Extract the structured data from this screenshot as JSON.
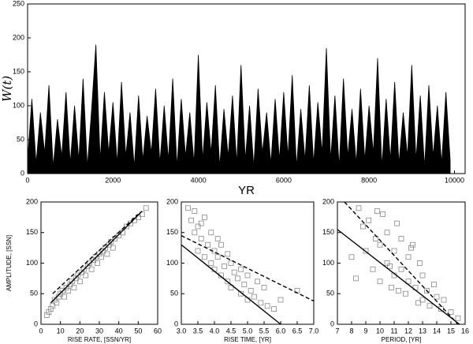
{
  "chart_data": [
    {
      "type": "area",
      "xlabel": "YR",
      "ylabel": "W(t)",
      "xlim": [
        0,
        10250
      ],
      "ylim": [
        0,
        250
      ],
      "xticks": [
        0,
        2000,
        4000,
        6000,
        8000,
        10000
      ],
      "yticks": [
        0,
        50,
        100,
        150,
        200,
        250
      ],
      "series": [
        {
          "color": "#000000",
          "x": [
            0,
            100,
            200,
            300,
            400,
            500,
            600,
            700,
            800,
            900,
            1000,
            1100,
            1200,
            1300,
            1400,
            1500,
            1600,
            1700,
            1800,
            1900,
            2000,
            2100,
            2200,
            2300,
            2400,
            2500,
            2600,
            2700,
            2800,
            2900,
            3000,
            3100,
            3200,
            3300,
            3400,
            3500,
            3600,
            3700,
            3800,
            3900,
            4000,
            4100,
            4200,
            4300,
            4400,
            4500,
            4600,
            4700,
            4800,
            4900,
            5000,
            5100,
            5200,
            5300,
            5400,
            5500,
            5600,
            5700,
            5800,
            5900,
            6000,
            6100,
            6200,
            6300,
            6400,
            6500,
            6600,
            6700,
            6800,
            6900,
            7000,
            7100,
            7200,
            7300,
            7400,
            7500,
            7600,
            7700,
            7800,
            7900,
            8000,
            8100,
            8200,
            8300,
            8400,
            8500,
            8600,
            8700,
            8800,
            8900,
            9000,
            9100,
            9200,
            9300,
            9400,
            9500,
            9600,
            9700,
            9800,
            9900
          ],
          "values": [
            20,
            110,
            15,
            90,
            30,
            130,
            10,
            80,
            25,
            120,
            15,
            100,
            20,
            140,
            10,
            95,
            190,
            20,
            120,
            30,
            105,
            15,
            135,
            25,
            90,
            10,
            115,
            20,
            85,
            30,
            125,
            15,
            100,
            20,
            140,
            10,
            110,
            25,
            90,
            15,
            175,
            20,
            105,
            30,
            130,
            10,
            95,
            25,
            115,
            15,
            160,
            20,
            100,
            10,
            125,
            30,
            90,
            15,
            110,
            20,
            120,
            25,
            145,
            10,
            95,
            20,
            130,
            15,
            105,
            30,
            185,
            20,
            115,
            10,
            140,
            25,
            95,
            15,
            125,
            20,
            100,
            30,
            170,
            10,
            110,
            20,
            135,
            15,
            90,
            25,
            160,
            20,
            115,
            10,
            130,
            25,
            100,
            15,
            120,
            20
          ]
        }
      ]
    },
    {
      "type": "scatter",
      "xlabel": "RISE RATE, [SSN/YR]",
      "ylabel": "AMPLITUDE, [SSN]",
      "xlim": [
        0,
        60
      ],
      "ylim": [
        0,
        200
      ],
      "xticks": [
        0,
        10,
        20,
        30,
        40,
        50,
        60
      ],
      "yticks": [
        0,
        50,
        100,
        150,
        200
      ],
      "series": [
        {
          "mode": "markers",
          "color": "#888888",
          "x": [
            3,
            4,
            5,
            6,
            7,
            8,
            9,
            10,
            11,
            12,
            13,
            14,
            15,
            16,
            17,
            18,
            19,
            20,
            21,
            22,
            23,
            24,
            25,
            26,
            27,
            28,
            29,
            30,
            31,
            32,
            33,
            34,
            35,
            36,
            37,
            38,
            40,
            42,
            44,
            46,
            48,
            50,
            52,
            54
          ],
          "values": [
            15,
            20,
            25,
            30,
            40,
            35,
            45,
            50,
            55,
            45,
            60,
            55,
            65,
            70,
            60,
            75,
            80,
            70,
            85,
            90,
            80,
            95,
            100,
            90,
            105,
            110,
            100,
            115,
            110,
            120,
            125,
            115,
            130,
            135,
            125,
            140,
            145,
            150,
            160,
            165,
            170,
            175,
            180,
            190
          ]
        },
        {
          "mode": "solid",
          "color": "#000000",
          "x": [
            5,
            52
          ],
          "values": [
            35,
            185
          ]
        },
        {
          "mode": "dashed",
          "color": "#000000",
          "x": [
            6,
            50
          ],
          "values": [
            50,
            180
          ]
        }
      ]
    },
    {
      "type": "scatter",
      "xlabel": "RISE TIME, [YR]",
      "xlim": [
        3,
        7
      ],
      "ylim": [
        0,
        200
      ],
      "xticks": [
        {
          "value": 3,
          "label": "3.0"
        },
        3.5,
        {
          "value": 4,
          "label": "4.0"
        },
        4.5,
        {
          "value": 5,
          "label": "5.0"
        },
        5.5,
        {
          "value": 6,
          "label": "6.0"
        },
        6.5,
        {
          "value": 7,
          "label": "7.0"
        }
      ],
      "yticks": [
        0,
        50,
        100,
        150,
        200
      ],
      "series": [
        {
          "mode": "markers",
          "color": "#888888",
          "x": [
            3.2,
            3.3,
            3.4,
            3.5,
            3.5,
            3.6,
            3.7,
            3.7,
            3.8,
            3.9,
            3.9,
            4.0,
            4.0,
            4.1,
            4.2,
            4.2,
            4.3,
            4.4,
            4.4,
            4.5,
            4.5,
            4.6,
            4.7,
            4.8,
            4.8,
            4.9,
            5.0,
            5.0,
            5.1,
            5.2,
            5.3,
            5.4,
            5.5,
            5.6,
            5.8,
            6.0,
            6.5,
            3.4,
            3.6,
            4.1
          ],
          "values": [
            190,
            170,
            150,
            160,
            120,
            140,
            110,
            175,
            130,
            100,
            150,
            90,
            120,
            110,
            80,
            130,
            95,
            70,
            115,
            60,
            100,
            85,
            75,
            50,
            90,
            65,
            40,
            80,
            55,
            45,
            70,
            35,
            60,
            30,
            25,
            40,
            55,
            185,
            165,
            140
          ]
        },
        {
          "mode": "solid",
          "color": "#000000",
          "x": [
            3,
            6
          ],
          "values": [
            130,
            0
          ]
        },
        {
          "mode": "dashed",
          "color": "#000000",
          "x": [
            3,
            7
          ],
          "values": [
            145,
            38
          ]
        }
      ]
    },
    {
      "type": "scatter",
      "xlabel": "PERIOD, [YR]",
      "xlim": [
        7,
        16
      ],
      "ylim": [
        0,
        200
      ],
      "xticks": [
        7,
        8,
        9,
        10,
        11,
        12,
        13,
        14,
        15,
        16
      ],
      "yticks": [
        0,
        50,
        100,
        150,
        200
      ],
      "series": [
        {
          "mode": "markers",
          "color": "#888888",
          "x": [
            8.0,
            8.5,
            8.8,
            9.0,
            9.2,
            9.5,
            9.7,
            10.0,
            10.0,
            10.2,
            10.5,
            10.5,
            10.8,
            11.0,
            11.0,
            11.2,
            11.5,
            11.5,
            11.8,
            12.0,
            12.0,
            12.3,
            12.5,
            12.8,
            13.0,
            13.0,
            13.3,
            13.5,
            13.8,
            14.0,
            14.3,
            14.5,
            15.0,
            15.5,
            9.8,
            10.7,
            11.3,
            12.2,
            8.3,
            12.7
          ],
          "values": [
            110,
            190,
            160,
            120,
            170,
            90,
            140,
            130,
            70,
            180,
            100,
            150,
            60,
            120,
            80,
            165,
            90,
            140,
            50,
            110,
            70,
            130,
            60,
            100,
            40,
            80,
            55,
            30,
            65,
            45,
            25,
            40,
            20,
            10,
            185,
            95,
            55,
            125,
            75,
            35
          ]
        },
        {
          "mode": "solid",
          "color": "#000000",
          "x": [
            7,
            15.6
          ],
          "values": [
            155,
            0
          ]
        },
        {
          "mode": "dashed",
          "color": "#000000",
          "x": [
            7.5,
            15.5
          ],
          "values": [
            200,
            0
          ]
        }
      ]
    }
  ]
}
